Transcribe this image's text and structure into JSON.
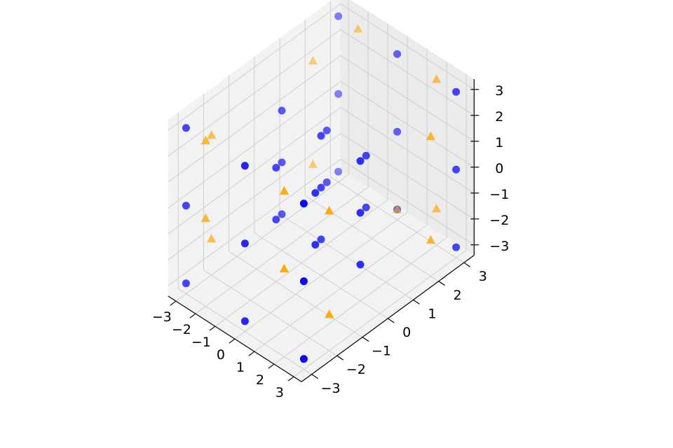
{
  "chart_data": {
    "type": "scatter",
    "projection": "3d",
    "title": "",
    "xlabel": "",
    "ylabel": "",
    "zlabel": "",
    "xlim": [
      -3.4,
      3.4
    ],
    "ylim": [
      -3.4,
      3.4
    ],
    "zlim": [
      -3.4,
      3.4
    ],
    "grid": true,
    "legend": "none",
    "xticks": [
      {
        "v": -3,
        "label": "−3"
      },
      {
        "v": -2,
        "label": "−2"
      },
      {
        "v": -1,
        "label": "−1"
      },
      {
        "v": 0,
        "label": "0"
      },
      {
        "v": 1,
        "label": "1"
      },
      {
        "v": 2,
        "label": "2"
      },
      {
        "v": 3,
        "label": "3"
      }
    ],
    "yticks": [
      {
        "v": -3,
        "label": "−3"
      },
      {
        "v": -2,
        "label": "−2"
      },
      {
        "v": -1,
        "label": "−1"
      },
      {
        "v": 0,
        "label": "0"
      },
      {
        "v": 1,
        "label": "1"
      },
      {
        "v": 2,
        "label": "2"
      },
      {
        "v": 3,
        "label": "3"
      }
    ],
    "zticks": [
      {
        "v": -3,
        "label": "−3"
      },
      {
        "v": -2,
        "label": "−2"
      },
      {
        "v": -1,
        "label": "−1"
      },
      {
        "v": 0,
        "label": "0"
      },
      {
        "v": 1,
        "label": "1"
      },
      {
        "v": 2,
        "label": "2"
      },
      {
        "v": 3,
        "label": "3"
      }
    ],
    "series": [
      {
        "marker": "circle",
        "color": "#0000ff",
        "points": [
          [
            -3,
            -3,
            -3
          ],
          [
            -3,
            -3,
            0
          ],
          [
            -3,
            -3,
            3
          ],
          [
            0,
            -3,
            -3
          ],
          [
            0,
            -3,
            0
          ],
          [
            0,
            -3,
            3
          ],
          [
            3,
            -3,
            -3
          ],
          [
            3,
            -3,
            0
          ],
          [
            3,
            -3,
            3
          ],
          [
            -1,
            -1,
            -1
          ],
          [
            -1,
            -1,
            1
          ],
          [
            1,
            -1,
            -1
          ],
          [
            1,
            -1,
            1
          ],
          [
            -2,
            0,
            -2
          ],
          [
            -2,
            0,
            0
          ],
          [
            -2,
            0,
            2
          ],
          [
            0,
            0,
            -2
          ],
          [
            0,
            0,
            0
          ],
          [
            0,
            0,
            2
          ],
          [
            2,
            0,
            -2
          ],
          [
            2,
            0,
            0
          ],
          [
            2,
            0,
            2
          ],
          [
            -1,
            1,
            -1
          ],
          [
            -1,
            1,
            1
          ],
          [
            1,
            1,
            -1
          ],
          [
            1,
            1,
            1
          ],
          [
            -3,
            3,
            -3
          ],
          [
            -3,
            3,
            0
          ],
          [
            -3,
            3,
            3
          ],
          [
            0,
            3,
            -3
          ],
          [
            0,
            3,
            0
          ],
          [
            0,
            3,
            3
          ],
          [
            3,
            3,
            -3
          ],
          [
            3,
            3,
            0
          ],
          [
            3,
            3,
            3
          ]
        ]
      },
      {
        "marker": "triangle",
        "color": "#ffa500",
        "points": [
          [
            -3,
            -2,
            -2
          ],
          [
            -3,
            -2,
            2
          ],
          [
            -2,
            -3,
            3
          ],
          [
            -3,
            2,
            -2
          ],
          [
            -3,
            2,
            2
          ],
          [
            -2,
            3,
            3
          ],
          [
            3,
            -2,
            -2
          ],
          [
            3,
            -2,
            2
          ],
          [
            2,
            -3,
            3
          ],
          [
            3,
            2,
            -2
          ],
          [
            3,
            2,
            2
          ],
          [
            2,
            3,
            3
          ],
          [
            -2,
            -3,
            0
          ],
          [
            2,
            -3,
            0
          ],
          [
            2,
            3,
            -2
          ],
          [
            0,
            3,
            -3
          ]
        ]
      }
    ]
  }
}
